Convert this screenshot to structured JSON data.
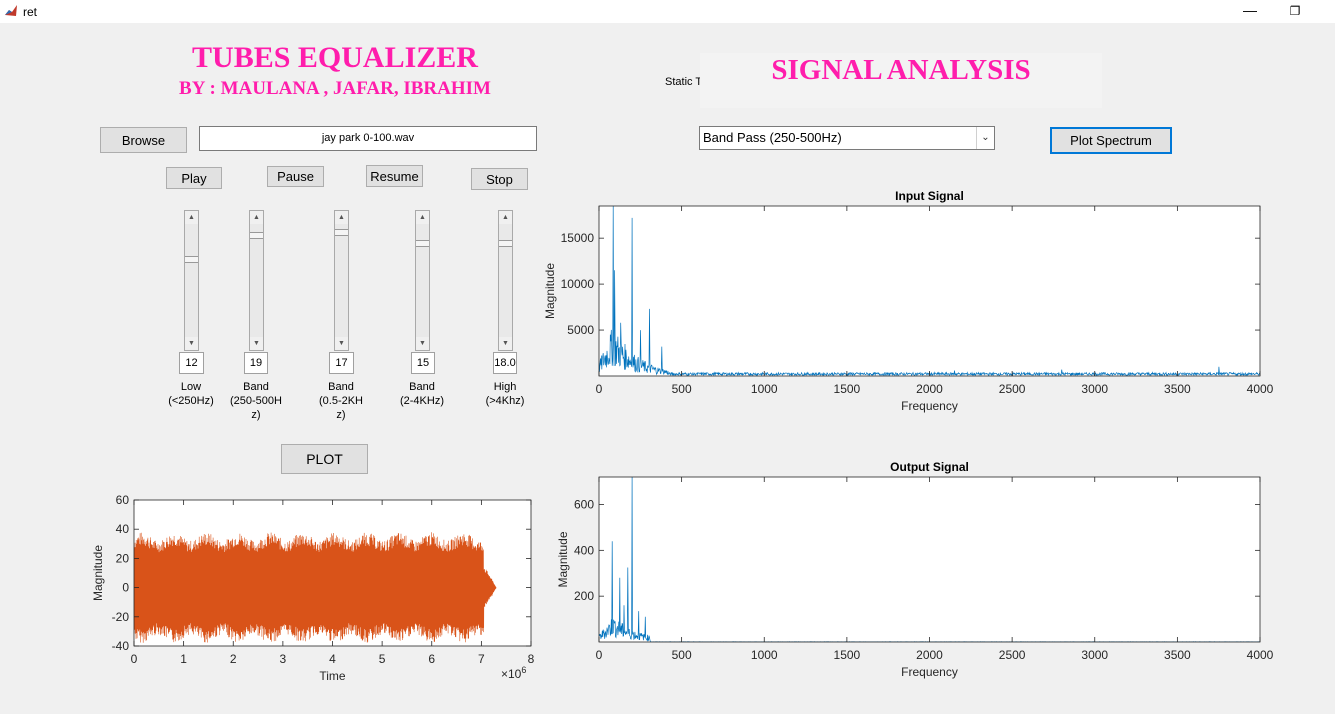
{
  "window": {
    "title": "ret"
  },
  "header": {
    "main_title": "TUBES EQUALIZER",
    "authors": "BY : MAULANA , JAFAR, IBRAHIM",
    "static_text": "Static Text",
    "analysis_title": "SIGNAL ANALYSIS"
  },
  "controls": {
    "browse_label": "Browse",
    "filename": "jay park 0-100.wav",
    "play_label": "Play",
    "pause_label": "Pause",
    "resume_label": "Resume",
    "stop_label": "Stop",
    "plot_label": "PLOT",
    "filter_selected": "Band Pass (250-500Hz)",
    "plot_spectrum_label": "Plot Spectrum"
  },
  "equalizer": {
    "bands": [
      {
        "value": "12",
        "label_lines": [
          "Low",
          "(<250Hz)"
        ],
        "level": 0.3
      },
      {
        "value": "19",
        "label_lines": [
          "Band",
          "(250-500H",
          "z)"
        ],
        "level": 0.08
      },
      {
        "value": "17",
        "label_lines": [
          "Band",
          "(0.5-2KH",
          "z)"
        ],
        "level": 0.05
      },
      {
        "value": "15",
        "label_lines": [
          "Band",
          "(2-4KHz)"
        ],
        "level": 0.15
      },
      {
        "value": "18.0",
        "label_lines": [
          "High",
          "(>4Khz)"
        ],
        "level": 0.15
      }
    ]
  },
  "colors": {
    "accent_title": "#ff1dac",
    "line_blue": "#0072bd",
    "line_orange": "#d95319"
  },
  "chart_data": [
    {
      "type": "line",
      "title": "",
      "xlabel": "Time",
      "ylabel": "Magnitude",
      "x_exponent": "×10",
      "x_exponent_power": "6",
      "xlim": [
        0,
        8
      ],
      "ylim": [
        -40,
        60
      ],
      "xticks": [
        "0",
        "1",
        "2",
        "3",
        "4",
        "5",
        "6",
        "7",
        "8"
      ],
      "yticks": [
        "-40",
        "-20",
        "0",
        "20",
        "40",
        "60"
      ],
      "series": [
        {
          "signal_end": 7.05,
          "fade_end": 7.3,
          "amplitude": 38
        }
      ]
    },
    {
      "type": "line",
      "title": "Input Signal",
      "xlabel": "Frequency",
      "ylabel": "Magnitude",
      "xlim": [
        0,
        4000
      ],
      "ylim": [
        0,
        18500
      ],
      "xticks": [
        "0",
        "500",
        "1000",
        "1500",
        "2000",
        "2500",
        "3000",
        "3500",
        "4000"
      ],
      "yticks": [
        "5000",
        "10000",
        "15000"
      ],
      "peaks": [
        [
          85,
          18500
        ],
        [
          95,
          11500
        ],
        [
          200,
          17200
        ],
        [
          305,
          7300
        ],
        [
          130,
          5800
        ],
        [
          250,
          5000
        ],
        [
          380,
          3200
        ],
        [
          3750,
          1000
        ],
        [
          2800,
          700
        ],
        [
          2150,
          600
        ]
      ]
    },
    {
      "type": "line",
      "title": "Output Signal",
      "xlabel": "Frequency",
      "ylabel": "Magnitude",
      "xlim": [
        0,
        4000
      ],
      "ylim": [
        0,
        720
      ],
      "xticks": [
        "0",
        "500",
        "1000",
        "1500",
        "2000",
        "2500",
        "3000",
        "3500",
        "4000"
      ],
      "yticks": [
        "200",
        "400",
        "600"
      ],
      "peaks": [
        [
          80,
          440
        ],
        [
          200,
          720
        ],
        [
          175,
          325
        ],
        [
          125,
          280
        ],
        [
          150,
          160
        ],
        [
          240,
          135
        ],
        [
          280,
          110
        ]
      ]
    }
  ]
}
